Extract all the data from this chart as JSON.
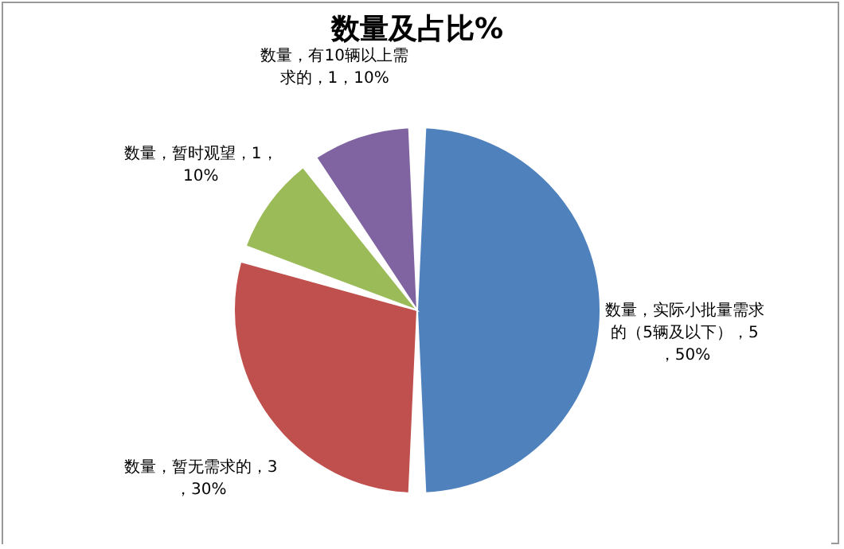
{
  "chart_data": {
    "type": "pie",
    "title": "数量及占比%",
    "categories": [
      "数量，实际小批量需求的（5辆及以下），5，50%",
      "数量，暂无需求的，3，30%",
      "数量，暂时观望，1，10%",
      "数量，有10辆以上需求的，1，10%"
    ],
    "values": [
      50,
      30,
      10,
      10
    ],
    "colors": [
      "#4f81bd",
      "#c0504d",
      "#9bbb59",
      "#8064a2"
    ],
    "legend": false
  }
}
